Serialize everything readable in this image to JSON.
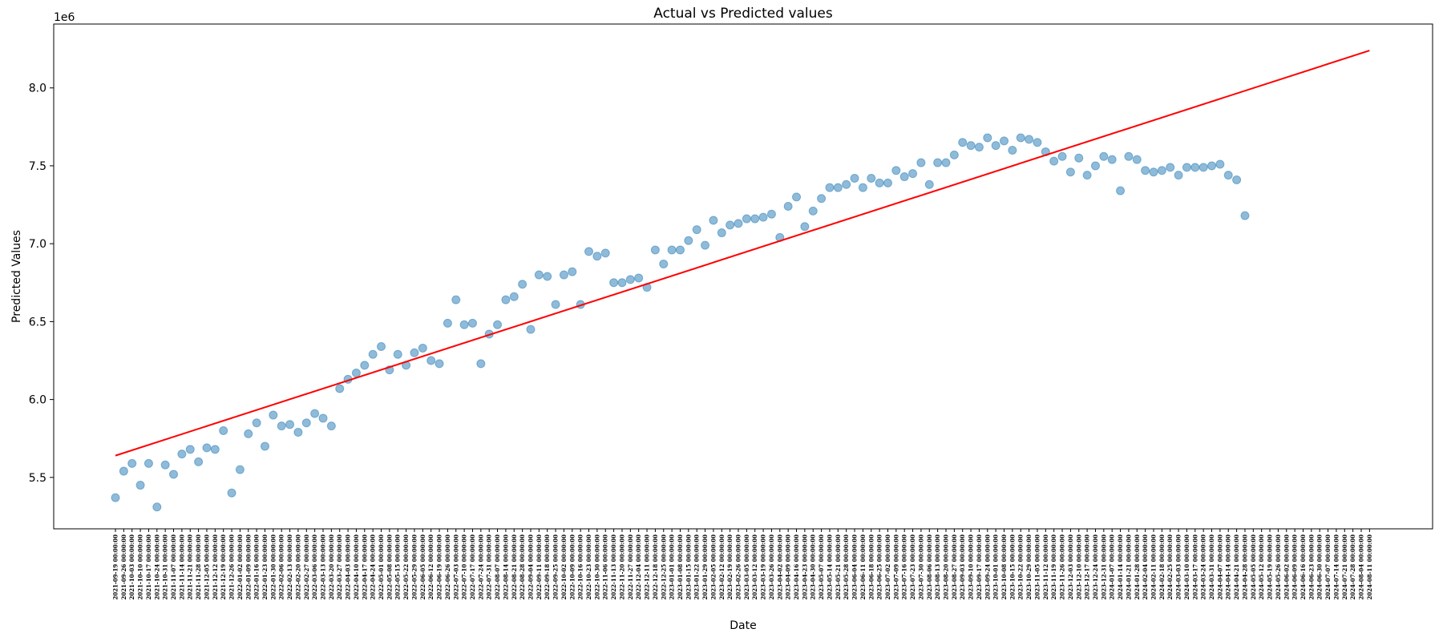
{
  "chart_data": {
    "type": "scatter",
    "title": "Actual vs Predicted values",
    "xlabel": "Date",
    "ylabel": "Predicted Values",
    "y_offset_label": "1e6",
    "start_date": "2021-09-19",
    "xtick_suffix": " 00:00:00",
    "y_ticks": [
      "5.5",
      "6.0",
      "6.5",
      "7.0",
      "7.5",
      "8.0"
    ],
    "y_tick_values": [
      5.5,
      6.0,
      6.5,
      7.0,
      7.5,
      8.0
    ],
    "ylim": [
      5.17,
      8.41
    ],
    "grid": false,
    "colors": {
      "points": "#1f77b4",
      "line": "#ff0000"
    },
    "series": [
      {
        "name": "Actual",
        "kind": "scatter",
        "values": [
          5.37,
          5.54,
          5.59,
          5.45,
          5.59,
          5.31,
          5.58,
          5.52,
          5.65,
          5.68,
          5.6,
          5.69,
          5.68,
          5.8,
          5.4,
          5.55,
          5.78,
          5.85,
          5.7,
          5.9,
          5.83,
          5.84,
          5.79,
          5.85,
          5.91,
          5.88,
          5.83,
          6.07,
          6.13,
          6.17,
          6.22,
          6.29,
          6.34,
          6.19,
          6.29,
          6.22,
          6.3,
          6.33,
          6.25,
          6.23,
          6.49,
          6.64,
          6.48,
          6.49,
          6.23,
          6.42,
          6.48,
          6.64,
          6.66,
          6.74,
          6.45,
          6.8,
          6.79,
          6.61,
          6.8,
          6.82,
          6.61,
          6.95,
          6.92,
          6.94,
          6.75,
          6.75,
          6.77,
          6.78,
          6.72,
          6.96,
          6.87,
          6.96,
          6.96,
          7.02,
          7.09,
          6.99,
          7.15,
          7.07,
          7.12,
          7.13,
          7.16,
          7.16,
          7.17,
          7.19,
          7.04,
          7.24,
          7.3,
          7.11,
          7.21,
          7.29,
          7.36,
          7.36,
          7.38,
          7.42,
          7.36,
          7.42,
          7.39,
          7.39,
          7.47,
          7.43,
          7.45,
          7.52,
          7.38,
          7.52,
          7.52,
          7.57,
          7.65,
          7.63,
          7.62,
          7.68,
          7.63,
          7.66,
          7.6,
          7.68,
          7.67,
          7.65,
          7.59,
          7.53,
          7.56,
          7.46,
          7.55,
          7.44,
          7.5,
          7.56,
          7.54,
          7.34,
          7.56,
          7.54,
          7.47,
          7.46,
          7.47,
          7.49,
          7.44,
          7.49,
          7.49,
          7.49,
          7.5,
          7.51,
          7.44,
          7.41,
          7.18
        ]
      },
      {
        "name": "Predicted",
        "kind": "line",
        "start": 5.64,
        "end": 8.24,
        "count": 152
      }
    ]
  }
}
